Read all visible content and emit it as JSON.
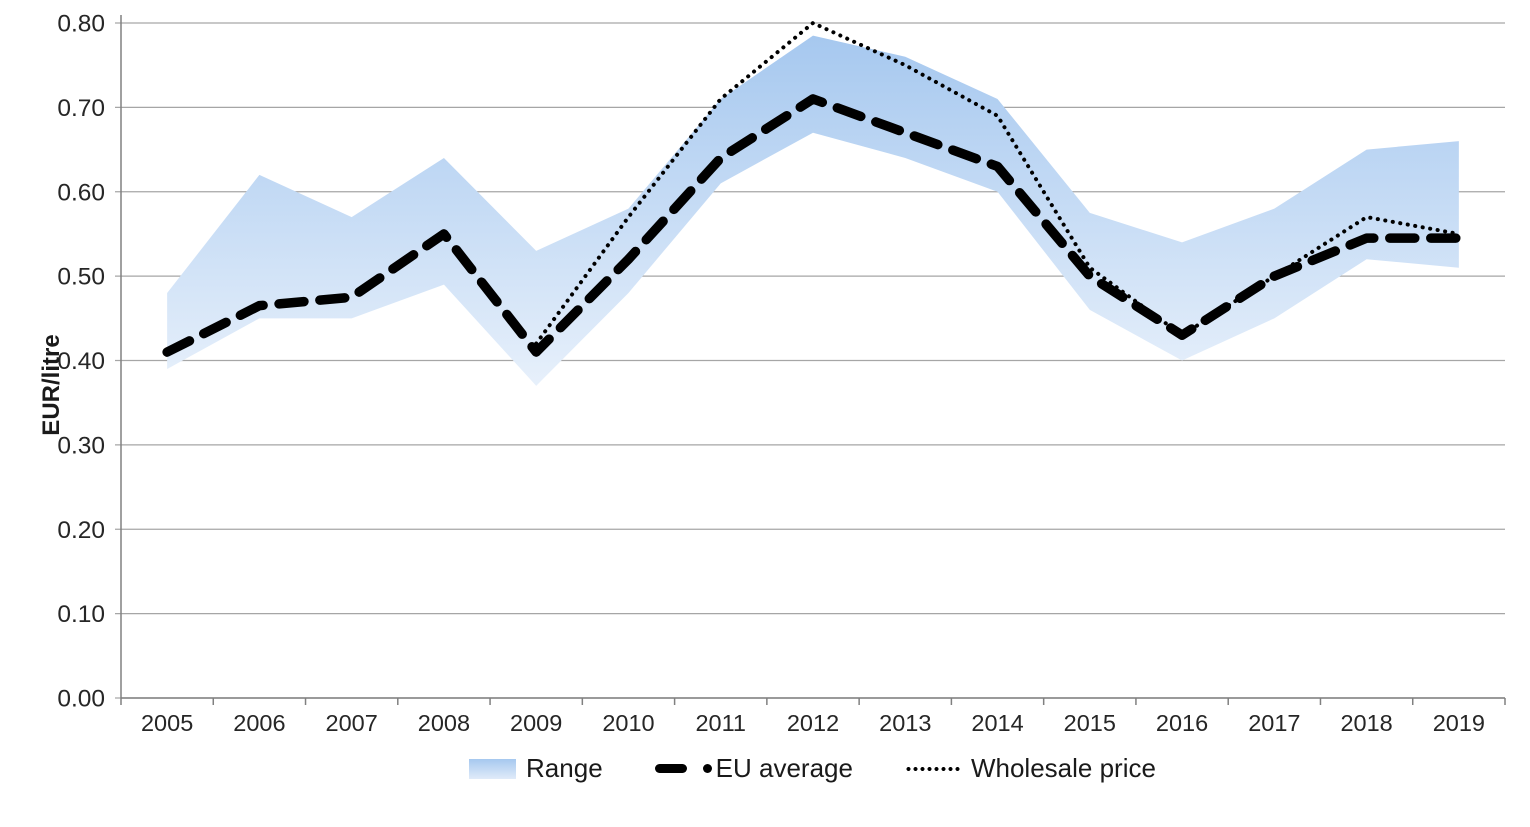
{
  "chart": {
    "ylabel": "EUR/litre",
    "legend": [
      {
        "label": "Range",
        "marker": "gradient-band-swatch"
      },
      {
        "label": "EU average",
        "marker": "thick-dash-dot"
      },
      {
        "label": "Wholesale price",
        "marker": "dotted-line"
      }
    ]
  },
  "chart_data": {
    "type": "line",
    "title": "",
    "xlabel": "",
    "ylabel": "EUR/litre",
    "ylim": [
      0.0,
      0.8
    ],
    "ytick_step": 0.1,
    "ytick_format_decimals": 2,
    "grid": true,
    "legend_position": "bottom",
    "categories": [
      2005,
      2006,
      2007,
      2008,
      2009,
      2010,
      2011,
      2012,
      2013,
      2014,
      2015,
      2016,
      2017,
      2018,
      2019
    ],
    "series": [
      {
        "name": "Range (min)",
        "role": "band-min",
        "values": [
          0.39,
          0.45,
          0.45,
          0.49,
          0.37,
          0.48,
          0.61,
          0.67,
          0.64,
          0.6,
          0.46,
          0.4,
          0.45,
          0.52,
          0.51
        ]
      },
      {
        "name": "Range (max)",
        "role": "band-max",
        "values": [
          0.48,
          0.62,
          0.57,
          0.64,
          0.53,
          0.58,
          0.71,
          0.785,
          0.76,
          0.71,
          0.575,
          0.54,
          0.58,
          0.65,
          0.66
        ]
      },
      {
        "name": "EU average",
        "role": "dashed-line",
        "values": [
          0.41,
          0.465,
          0.475,
          0.55,
          0.41,
          0.52,
          0.64,
          0.71,
          0.67,
          0.63,
          0.5,
          0.43,
          0.5,
          0.545,
          0.545
        ]
      },
      {
        "name": "Wholesale price",
        "role": "dotted-line",
        "values": [
          null,
          null,
          null,
          null,
          0.42,
          0.57,
          0.71,
          0.8,
          0.75,
          0.69,
          0.51,
          0.43,
          0.5,
          0.57,
          0.55
        ]
      }
    ],
    "colors": {
      "band_top": "#a6c8ef",
      "band_bottom": "#e7f0fb",
      "line": "#000000",
      "gridline": "#a6a6a6",
      "axis": "#808080"
    }
  }
}
